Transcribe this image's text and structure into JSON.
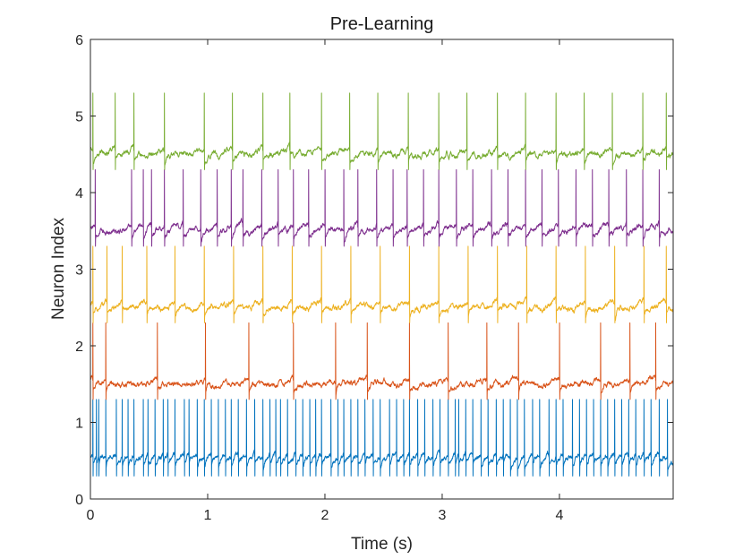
{
  "chart_data": {
    "type": "line",
    "title": "Pre-Learning",
    "xlabel": "Time (s)",
    "ylabel": "Neuron Index",
    "xlim": [
      0,
      4.97
    ],
    "ylim": [
      0,
      6
    ],
    "xticks": [
      0,
      1,
      2,
      3,
      4
    ],
    "yticks": [
      0,
      1,
      2,
      3,
      4,
      5,
      6
    ],
    "xtick_labels": [
      "0",
      "1",
      "2",
      "3",
      "4"
    ],
    "ytick_labels": [
      "0",
      "1",
      "2",
      "3",
      "4",
      "5",
      "6"
    ],
    "grid": false,
    "legend": "none",
    "series": [
      {
        "color": "#0072BD",
        "baseline": 0.5,
        "spike_peak": 1.3,
        "spike_trough": 0.3,
        "spike_times": [
          0.02,
          0.05,
          0.07,
          0.13,
          0.22,
          0.27,
          0.32,
          0.37,
          0.45,
          0.49,
          0.55,
          0.62,
          0.66,
          0.72,
          0.8,
          0.84,
          0.91,
          0.97,
          1.03,
          1.09,
          1.15,
          1.2,
          1.26,
          1.33,
          1.4,
          1.47,
          1.53,
          1.58,
          1.62,
          1.68,
          1.75,
          1.81,
          1.87,
          1.92,
          1.97,
          2.05,
          2.11,
          2.16,
          2.22,
          2.28,
          2.34,
          2.41,
          2.47,
          2.55,
          2.61,
          2.67,
          2.72,
          2.79,
          2.85,
          2.92,
          2.98,
          3.05,
          3.11,
          3.14,
          3.2,
          3.26,
          3.33,
          3.39,
          3.46,
          3.52,
          3.58,
          3.64,
          3.7,
          3.77,
          3.83,
          3.91,
          3.97,
          4.03,
          4.11,
          4.17,
          4.23,
          4.29,
          4.35,
          4.41,
          4.47,
          4.53,
          4.59,
          4.65,
          4.72,
          4.78,
          4.85,
          4.92
        ]
      },
      {
        "color": "#D95319",
        "baseline": 1.5,
        "spike_peak": 2.3,
        "spike_trough": 1.3,
        "spike_times": [
          0.02,
          0.13,
          0.57,
          0.98,
          1.35,
          1.73,
          2.09,
          2.36,
          2.72,
          3.05,
          3.38,
          3.65,
          4.0,
          4.35,
          4.6,
          4.82
        ]
      },
      {
        "color": "#EDB120",
        "baseline": 2.5,
        "spike_peak": 3.3,
        "spike_trough": 2.3,
        "spike_times": [
          0.02,
          0.14,
          0.27,
          0.48,
          0.72,
          0.97,
          1.22,
          1.47,
          1.72,
          1.97,
          2.22,
          2.47,
          2.72,
          2.97,
          3.22,
          3.47,
          3.72,
          3.97,
          4.22,
          4.47,
          4.72,
          4.91
        ]
      },
      {
        "color": "#7E2F8E",
        "baseline": 3.5,
        "spike_peak": 4.3,
        "spike_trough": 3.3,
        "spike_times": [
          0.04,
          0.35,
          0.45,
          0.52,
          0.63,
          0.79,
          0.94,
          1.08,
          1.2,
          1.3,
          1.46,
          1.6,
          1.73,
          1.86,
          2.0,
          2.16,
          2.28,
          2.44,
          2.58,
          2.7,
          2.84,
          2.97,
          3.12,
          3.26,
          3.42,
          3.56,
          3.71,
          3.85,
          3.99,
          4.14,
          4.28,
          4.42,
          4.57,
          4.71,
          4.85
        ]
      },
      {
        "color": "#77AC30",
        "baseline": 4.5,
        "spike_peak": 5.3,
        "spike_trough": 4.3,
        "spike_times": [
          0.02,
          0.21,
          0.37,
          0.63,
          0.97,
          1.21,
          1.47,
          1.7,
          1.97,
          2.21,
          2.45,
          2.71,
          2.97,
          3.21,
          3.47,
          3.71,
          3.97,
          4.21,
          4.45,
          4.71,
          4.91
        ]
      }
    ]
  }
}
